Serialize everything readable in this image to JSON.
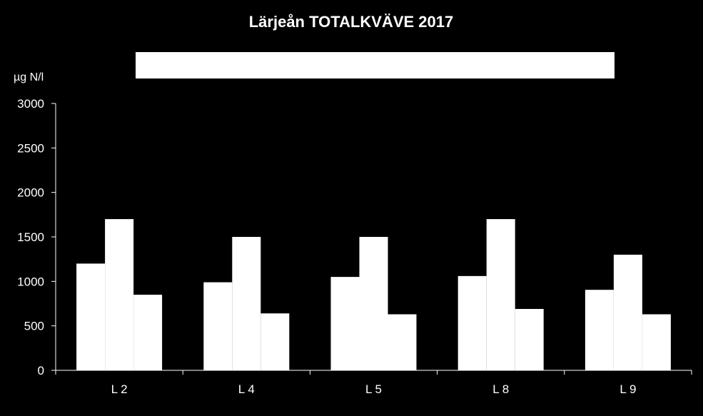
{
  "chart_data": {
    "type": "bar",
    "title": "Lärjeån TOTALKVÄVE 2017",
    "ylabel": "µg N/l",
    "xlabel": "",
    "ylim": [
      0,
      3000
    ],
    "yticks": [
      "0",
      "500",
      "1000",
      "1500",
      "2000",
      "2500",
      "3000"
    ],
    "categories": [
      "L 2",
      "L 4",
      "L 5",
      "L 8",
      "L 9"
    ],
    "series": [
      {
        "values": [
          1200,
          990,
          1050,
          1060,
          905
        ],
        "color": "#ffffff"
      },
      {
        "values": [
          1700,
          1500,
          1500,
          1700,
          1300
        ],
        "color": "#ffffff"
      },
      {
        "values": [
          850,
          640,
          630,
          690,
          630
        ],
        "color": "#ffffff"
      }
    ],
    "legend": {
      "placement": "top",
      "entries": []
    },
    "colors": {
      "background": "#000000",
      "foreground": "#ffffff"
    }
  }
}
